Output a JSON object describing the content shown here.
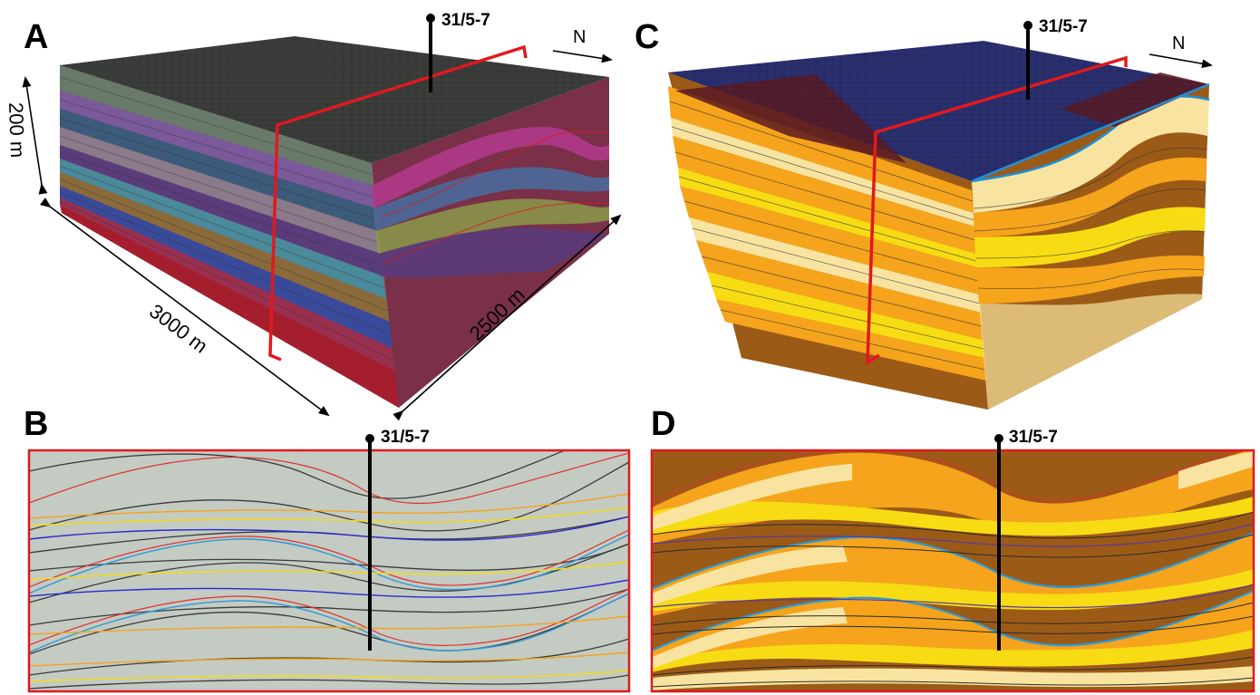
{
  "panels": {
    "a": {
      "label": "A",
      "well": "31/5-7",
      "north": "N",
      "dim_height": "200 m",
      "dim_length": "3000 m",
      "dim_width": "2500 m"
    },
    "b": {
      "label": "B",
      "well": "31/5-7"
    },
    "c": {
      "label": "C",
      "well": "31/5-7",
      "north": "N"
    },
    "d": {
      "label": "D",
      "well": "31/5-7"
    }
  },
  "colors": {
    "section_frame": "#e0191e",
    "section_bg_b": "#c4cbc3",
    "facies_brown": "#9c5a17",
    "facies_orange": "#f5a41c",
    "facies_yellow": "#f7dc14",
    "facies_pale": "#f8e4a0",
    "top_surface_c": "#2a2f6e",
    "top_surface_a": "#3a3d3a"
  }
}
